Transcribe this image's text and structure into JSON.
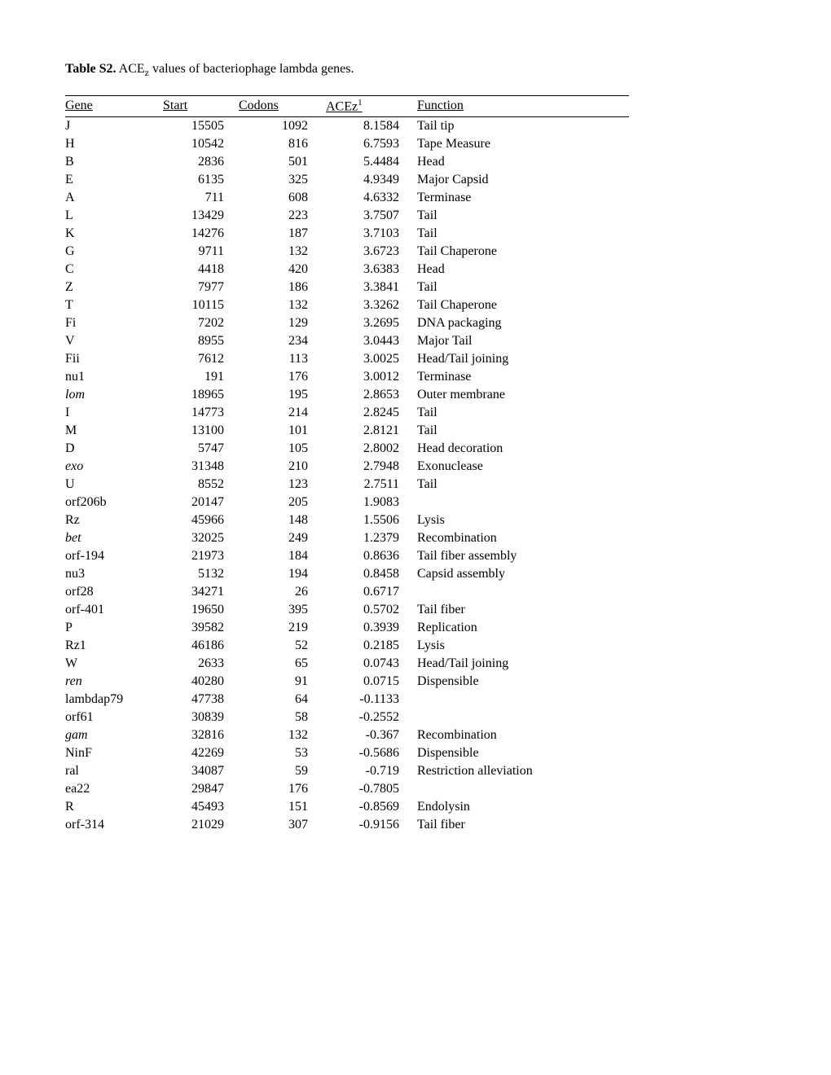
{
  "caption": {
    "label": "Table S2.",
    "text_before_sub": " ACE",
    "sub": "z",
    "text_after_sub": " values of bacteriophage lambda genes."
  },
  "headers": {
    "gene": "Gene",
    "start": "Start",
    "codons": "Codons",
    "acez_base": "ACEz",
    "acez_sup": "1",
    "function": "Function"
  },
  "rows": [
    {
      "gene": "J",
      "italic": false,
      "start": "15505",
      "codons": "1092",
      "acez": "8.1584",
      "function": "Tail tip"
    },
    {
      "gene": "H",
      "italic": false,
      "start": "10542",
      "codons": "816",
      "acez": "6.7593",
      "function": "Tape Measure"
    },
    {
      "gene": "B",
      "italic": false,
      "start": "2836",
      "codons": "501",
      "acez": "5.4484",
      "function": "Head"
    },
    {
      "gene": "E",
      "italic": false,
      "start": "6135",
      "codons": "325",
      "acez": "4.9349",
      "function": "Major Capsid"
    },
    {
      "gene": "A",
      "italic": false,
      "start": "711",
      "codons": "608",
      "acez": "4.6332",
      "function": "Terminase"
    },
    {
      "gene": "L",
      "italic": false,
      "start": "13429",
      "codons": "223",
      "acez": "3.7507",
      "function": "Tail"
    },
    {
      "gene": "K",
      "italic": false,
      "start": "14276",
      "codons": "187",
      "acez": "3.7103",
      "function": "Tail"
    },
    {
      "gene": "G",
      "italic": false,
      "start": "9711",
      "codons": "132",
      "acez": "3.6723",
      "function": "Tail Chaperone"
    },
    {
      "gene": "C",
      "italic": false,
      "start": "4418",
      "codons": "420",
      "acez": "3.6383",
      "function": "Head"
    },
    {
      "gene": "Z",
      "italic": false,
      "start": "7977",
      "codons": "186",
      "acez": "3.3841",
      "function": "Tail"
    },
    {
      "gene": "T",
      "italic": false,
      "start": "10115",
      "codons": "132",
      "acez": "3.3262",
      "function": "Tail Chaperone"
    },
    {
      "gene": "Fi",
      "italic": false,
      "start": "7202",
      "codons": "129",
      "acez": "3.2695",
      "function": "DNA packaging"
    },
    {
      "gene": "V",
      "italic": false,
      "start": "8955",
      "codons": "234",
      "acez": "3.0443",
      "function": "Major Tail"
    },
    {
      "gene": "Fii",
      "italic": false,
      "start": "7612",
      "codons": "113",
      "acez": "3.0025",
      "function": "Head/Tail joining"
    },
    {
      "gene": "nu1",
      "italic": false,
      "start": "191",
      "codons": "176",
      "acez": "3.0012",
      "function": "Terminase"
    },
    {
      "gene": "lom",
      "italic": true,
      "start": "18965",
      "codons": "195",
      "acez": "2.8653",
      "function": "Outer membrane"
    },
    {
      "gene": "I",
      "italic": false,
      "start": "14773",
      "codons": "214",
      "acez": "2.8245",
      "function": "Tail"
    },
    {
      "gene": "M",
      "italic": false,
      "start": "13100",
      "codons": "101",
      "acez": "2.8121",
      "function": "Tail"
    },
    {
      "gene": "D",
      "italic": false,
      "start": "5747",
      "codons": "105",
      "acez": "2.8002",
      "function": "Head decoration"
    },
    {
      "gene": "exo",
      "italic": true,
      "start": "31348",
      "codons": "210",
      "acez": "2.7948",
      "function": "Exonuclease"
    },
    {
      "gene": "U",
      "italic": false,
      "start": "8552",
      "codons": "123",
      "acez": "2.7511",
      "function": "Tail"
    },
    {
      "gene": "orf206b",
      "italic": false,
      "start": "20147",
      "codons": "205",
      "acez": "1.9083",
      "function": ""
    },
    {
      "gene": "Rz",
      "italic": false,
      "start": "45966",
      "codons": "148",
      "acez": "1.5506",
      "function": "Lysis"
    },
    {
      "gene": "bet",
      "italic": true,
      "start": "32025",
      "codons": "249",
      "acez": "1.2379",
      "function": "Recombination"
    },
    {
      "gene": "orf-194",
      "italic": false,
      "start": "21973",
      "codons": "184",
      "acez": "0.8636",
      "function": "Tail fiber assembly"
    },
    {
      "gene": "nu3",
      "italic": false,
      "start": "5132",
      "codons": "194",
      "acez": "0.8458",
      "function": "Capsid assembly"
    },
    {
      "gene": "orf28",
      "italic": false,
      "start": "34271",
      "codons": "26",
      "acez": "0.6717",
      "function": ""
    },
    {
      "gene": "orf-401",
      "italic": false,
      "start": "19650",
      "codons": "395",
      "acez": "0.5702",
      "function": "Tail fiber"
    },
    {
      "gene": "P",
      "italic": false,
      "start": "39582",
      "codons": "219",
      "acez": "0.3939",
      "function": "Replication"
    },
    {
      "gene": "Rz1",
      "italic": false,
      "start": "46186",
      "codons": "52",
      "acez": "0.2185",
      "function": "Lysis"
    },
    {
      "gene": "W",
      "italic": false,
      "start": "2633",
      "codons": "65",
      "acez": "0.0743",
      "function": "Head/Tail joining"
    },
    {
      "gene": "ren",
      "italic": true,
      "start": "40280",
      "codons": "91",
      "acez": "0.0715",
      "function": "Dispensible"
    },
    {
      "gene": "lambdap79",
      "italic": false,
      "start": "47738",
      "codons": "64",
      "acez": "-0.1133",
      "function": ""
    },
    {
      "gene": "orf61",
      "italic": false,
      "start": "30839",
      "codons": "58",
      "acez": "-0.2552",
      "function": ""
    },
    {
      "gene": "gam",
      "italic": true,
      "start": "32816",
      "codons": "132",
      "acez": "-0.367",
      "function": "Recombination"
    },
    {
      "gene": "NinF",
      "italic": false,
      "start": "42269",
      "codons": "53",
      "acez": "-0.5686",
      "function": "Dispensible"
    },
    {
      "gene": "ral",
      "italic": false,
      "start": "34087",
      "codons": "59",
      "acez": "-0.719",
      "function": "Restriction alleviation"
    },
    {
      "gene": "ea22",
      "italic": false,
      "start": "29847",
      "codons": "176",
      "acez": "-0.7805",
      "function": ""
    },
    {
      "gene": "R",
      "italic": false,
      "start": "45493",
      "codons": "151",
      "acez": "-0.8569",
      "function": "Endolysin"
    },
    {
      "gene": "orf-314",
      "italic": false,
      "start": "21029",
      "codons": "307",
      "acez": "-0.9156",
      "function": "Tail fiber"
    }
  ]
}
